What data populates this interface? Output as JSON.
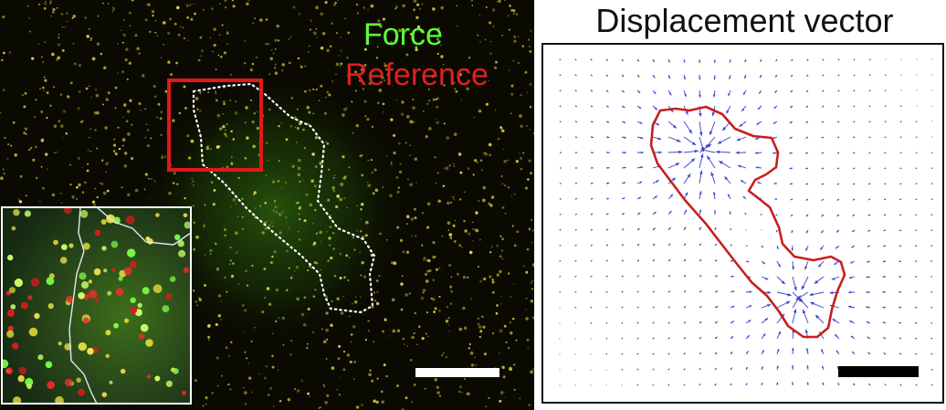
{
  "left_image": {
    "legend": {
      "force_label": "Force",
      "reference_label": "Reference"
    },
    "colors": {
      "background": "#0b0a02",
      "force": "#5dff3a",
      "reference": "#e02020",
      "box": "#e01919",
      "outline": "#ffffff",
      "scale_bar": "#ffffff"
    }
  },
  "right_image": {
    "title": "Displacement vector",
    "colors": {
      "vector": "#3a3fcf",
      "cell_outline": "#c81e1e",
      "scale_bar": "#000000",
      "frame": "#111111"
    }
  }
}
